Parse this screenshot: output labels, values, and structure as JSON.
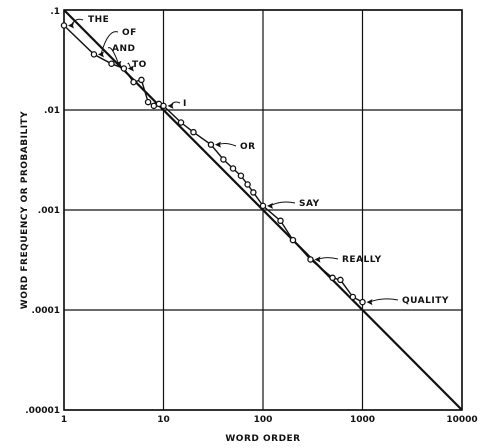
{
  "chart_data": {
    "type": "line",
    "xlabel": "WORD ORDER",
    "ylabel": "WORD FREQUENCY  OR  PROBABILITY",
    "x_scale": "log",
    "y_scale": "log",
    "xlim": [
      1,
      10000
    ],
    "ylim": [
      1e-05,
      0.1
    ],
    "grid": true,
    "x_tick_labels": [
      "1",
      "10",
      "100",
      "1000",
      "10000"
    ],
    "y_tick_labels": [
      ".1",
      ".01",
      ".001",
      ".0001",
      ".00001"
    ],
    "reference_line": {
      "points": [
        [
          1,
          0.1
        ],
        [
          10000,
          1e-05
        ]
      ]
    },
    "series": [
      {
        "points": [
          [
            1,
            0.07
          ],
          [
            2,
            0.036
          ],
          [
            3,
            0.029
          ],
          [
            4,
            0.026
          ],
          [
            5,
            0.019
          ],
          [
            6,
            0.02
          ],
          [
            7,
            0.012
          ],
          [
            8,
            0.011
          ],
          [
            9,
            0.0115
          ],
          [
            10,
            0.011
          ],
          [
            15,
            0.0075
          ],
          [
            20,
            0.006
          ],
          [
            30,
            0.0045
          ],
          [
            40,
            0.0032
          ],
          [
            50,
            0.0026
          ],
          [
            60,
            0.0022
          ],
          [
            70,
            0.0018
          ],
          [
            80,
            0.0015
          ],
          [
            100,
            0.0011
          ],
          [
            150,
            0.00078
          ],
          [
            200,
            0.0005
          ],
          [
            300,
            0.00032
          ],
          [
            500,
            0.00021
          ],
          [
            600,
            0.0002
          ],
          [
            800,
            0.000135
          ],
          [
            1000,
            0.00012
          ]
        ]
      }
    ],
    "annotations": [
      {
        "label": "THE",
        "x": 1,
        "y": 0.07
      },
      {
        "label": "OF",
        "x": 2,
        "y": 0.036
      },
      {
        "label": "AND",
        "x": 3,
        "y": 0.029
      },
      {
        "label": "TO",
        "x": 4,
        "y": 0.026
      },
      {
        "label": "I",
        "x": 10,
        "y": 0.011
      },
      {
        "label": "OR",
        "x": 30,
        "y": 0.0045
      },
      {
        "label": "SAY",
        "x": 100,
        "y": 0.0011
      },
      {
        "label": "REALLY",
        "x": 300,
        "y": 0.00032
      },
      {
        "label": "QUALITY",
        "x": 1000,
        "y": 0.00012
      }
    ]
  }
}
